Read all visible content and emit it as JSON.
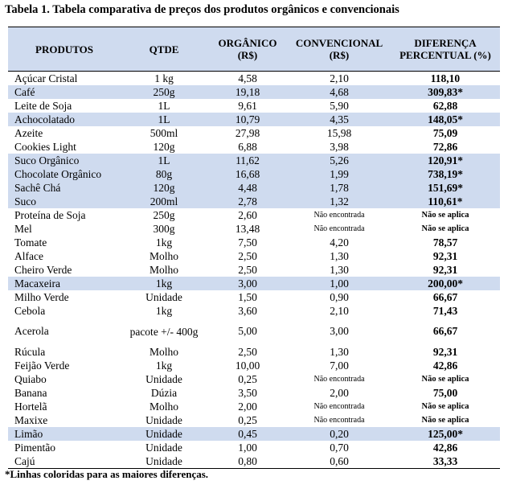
{
  "title": "Tabela 1. Tabela comparativa de preços dos produtos orgânicos e convencionais",
  "headers": {
    "produtos": "PRODUTOS",
    "qtde": "QTDE",
    "organico": "ORGÂNICO (R$)",
    "convencional": "CONVENCIONAL (R$)",
    "diferenca": "DIFERENÇA PERCENTUAL (%)"
  },
  "colors": {
    "highlight": "#cfdbef"
  },
  "rows": [
    {
      "produto": "Açúcar Cristal",
      "qtde": "1 kg",
      "organico": "4,58",
      "convencional": "2,10",
      "diferenca": "118,10",
      "hl": false
    },
    {
      "produto": "Café",
      "qtde": "250g",
      "organico": "19,18",
      "convencional": "4,68",
      "diferenca": "309,83*",
      "hl": true
    },
    {
      "produto": "Leite de Soja",
      "qtde": "1L",
      "organico": "9,61",
      "convencional": "5,90",
      "diferenca": "62,88",
      "hl": false
    },
    {
      "produto": "Achocolatado",
      "qtde": "1L",
      "organico": "10,79",
      "convencional": "4,35",
      "diferenca": "148,05*",
      "hl": true
    },
    {
      "produto": "Azeite",
      "qtde": "500ml",
      "organico": "27,98",
      "convencional": "15,98",
      "diferenca": "75,09",
      "hl": false
    },
    {
      "produto": "Cookies Light",
      "qtde": "120g",
      "organico": "6,88",
      "convencional": "3,98",
      "diferenca": "72,86",
      "hl": false
    },
    {
      "produto": "Suco Orgânico",
      "qtde": "1L",
      "organico": "11,62",
      "convencional": "5,26",
      "diferenca": "120,91*",
      "hl": true
    },
    {
      "produto": "Chocolate Orgânico",
      "qtde": "80g",
      "organico": "16,68",
      "convencional": "1,99",
      "diferenca": "738,19*",
      "hl": true
    },
    {
      "produto": "Sachê Chá",
      "qtde": "120g",
      "organico": "4,48",
      "convencional": "1,78",
      "diferenca": "151,69*",
      "hl": true
    },
    {
      "produto": "Suco",
      "qtde": "200ml",
      "organico": "2,78",
      "convencional": "1,32",
      "diferenca": "110,61*",
      "hl": true
    },
    {
      "produto": "Proteína de Soja",
      "qtde": "250g",
      "organico": "2,60",
      "convencional": "Não encontrada",
      "diferenca": "Não se aplica",
      "hl": false
    },
    {
      "produto": "Mel",
      "qtde": "300g",
      "organico": "13,48",
      "convencional": "Não encontrada",
      "diferenca": "Não se aplica",
      "hl": false
    },
    {
      "produto": "Tomate",
      "qtde": "1kg",
      "organico": "7,50",
      "convencional": "4,20",
      "diferenca": "78,57",
      "hl": false
    },
    {
      "produto": "Alface",
      "qtde": "Molho",
      "organico": "2,50",
      "convencional": "1,30",
      "diferenca": "92,31",
      "hl": false
    },
    {
      "produto": "Cheiro Verde",
      "qtde": "Molho",
      "organico": "2,50",
      "convencional": "1,30",
      "diferenca": "92,31",
      "hl": false
    },
    {
      "produto": "Macaxeira",
      "qtde": "1kg",
      "organico": "3,00",
      "convencional": "1,00",
      "diferenca": "200,00*",
      "hl": true
    },
    {
      "produto": "Milho Verde",
      "qtde": "Unidade",
      "organico": "1,50",
      "convencional": "0,90",
      "diferenca": "66,67",
      "hl": false
    },
    {
      "produto": "Cebola",
      "qtde": "1kg",
      "organico": "3,60",
      "convencional": "2,10",
      "diferenca": "71,43",
      "hl": false
    },
    {
      "produto": "Acerola",
      "qtde": "pacote +/- 400g",
      "organico": "5,00",
      "convencional": "3,00",
      "diferenca": "66,67",
      "hl": false
    },
    {
      "produto": "Rúcula",
      "qtde": "Molho",
      "organico": "2,50",
      "convencional": "1,30",
      "diferenca": "92,31",
      "hl": false
    },
    {
      "produto": "Feijão Verde",
      "qtde": "1kg",
      "organico": "10,00",
      "convencional": "7,00",
      "diferenca": "42,86",
      "hl": false
    },
    {
      "produto": "Quiabo",
      "qtde": "Unidade",
      "organico": "0,25",
      "convencional": "Não encontrada",
      "diferenca": "Não se aplica",
      "hl": false
    },
    {
      "produto": "Banana",
      "qtde": "Dúzia",
      "organico": "3,50",
      "convencional": "2,00",
      "diferenca": "75,00",
      "hl": false
    },
    {
      "produto": "Hortelã",
      "qtde": "Molho",
      "organico": "2,00",
      "convencional": "Não encontrada",
      "diferenca": "Não se aplica",
      "hl": false
    },
    {
      "produto": "Maxixe",
      "qtde": "Unidade",
      "organico": "0,25",
      "convencional": "Não encontrada",
      "diferenca": "Não se aplica",
      "hl": false
    },
    {
      "produto": "Limão",
      "qtde": "Unidade",
      "organico": "0,45",
      "convencional": "0,20",
      "diferenca": "125,00*",
      "hl": true
    },
    {
      "produto": "Pimentão",
      "qtde": "Unidade",
      "organico": "1,00",
      "convencional": "0,70",
      "diferenca": "42,86",
      "hl": false
    },
    {
      "produto": "Cajú",
      "qtde": "Unidade",
      "organico": "0,80",
      "convencional": "0,60",
      "diferenca": "33,33",
      "hl": false
    }
  ],
  "footnote": "*Linhas coloridas para as maiores diferenças."
}
